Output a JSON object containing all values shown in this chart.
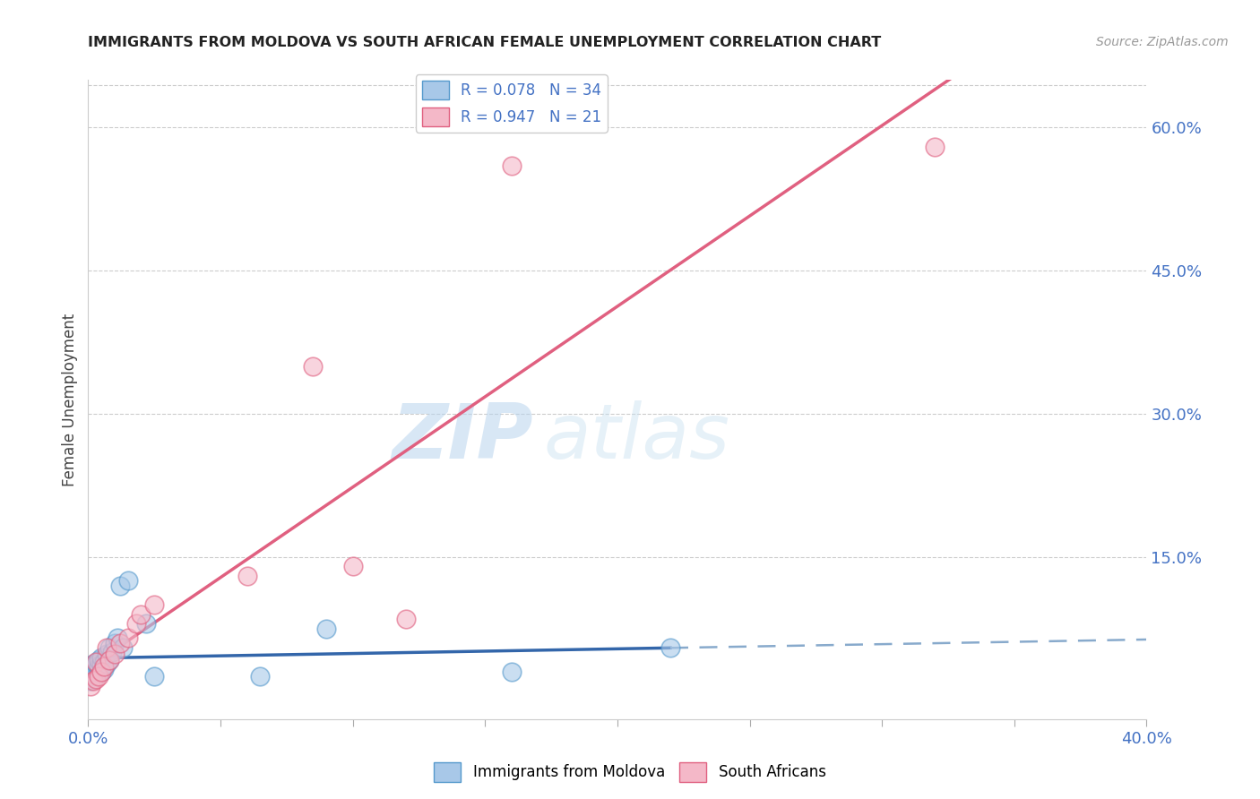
{
  "title": "IMMIGRANTS FROM MOLDOVA VS SOUTH AFRICAN FEMALE UNEMPLOYMENT CORRELATION CHART",
  "source": "Source: ZipAtlas.com",
  "ylabel": "Female Unemployment",
  "watermark_zip": "ZIP",
  "watermark_atlas": "atlas",
  "xlim": [
    0.0,
    0.4
  ],
  "ylim": [
    -0.02,
    0.65
  ],
  "xticks": [
    0.0,
    0.05,
    0.1,
    0.15,
    0.2,
    0.25,
    0.3,
    0.35,
    0.4
  ],
  "xtick_labels": [
    "0.0%",
    "",
    "",
    "",
    "",
    "",
    "",
    "",
    "40.0%"
  ],
  "yticks_right": [
    0.15,
    0.3,
    0.45,
    0.6
  ],
  "ytick_labels_right": [
    "15.0%",
    "30.0%",
    "45.0%",
    "60.0%"
  ],
  "legend_r1": "R = 0.078",
  "legend_n1": "N = 34",
  "legend_r2": "R = 0.947",
  "legend_n2": "N = 21",
  "blue_scatter_color": "#a8c8e8",
  "blue_edge_color": "#5599cc",
  "pink_scatter_color": "#f4b8c8",
  "pink_edge_color": "#e06080",
  "blue_line_solid_color": "#3366aa",
  "blue_line_dash_color": "#88aacc",
  "pink_line_color": "#e06080",
  "axis_label_color": "#4472c4",
  "grid_color": "#cccccc",
  "moldova_x": [
    0.001,
    0.001,
    0.001,
    0.002,
    0.002,
    0.002,
    0.002,
    0.003,
    0.003,
    0.003,
    0.004,
    0.004,
    0.004,
    0.005,
    0.005,
    0.005,
    0.006,
    0.006,
    0.007,
    0.007,
    0.008,
    0.008,
    0.009,
    0.01,
    0.011,
    0.012,
    0.013,
    0.015,
    0.022,
    0.025,
    0.065,
    0.09,
    0.16,
    0.22
  ],
  "moldova_y": [
    0.02,
    0.025,
    0.03,
    0.022,
    0.028,
    0.032,
    0.038,
    0.025,
    0.03,
    0.038,
    0.03,
    0.035,
    0.042,
    0.03,
    0.038,
    0.045,
    0.032,
    0.04,
    0.038,
    0.048,
    0.042,
    0.055,
    0.05,
    0.06,
    0.065,
    0.12,
    0.055,
    0.125,
    0.08,
    0.025,
    0.025,
    0.075,
    0.03,
    0.055
  ],
  "southafrica_x": [
    0.001,
    0.002,
    0.003,
    0.003,
    0.004,
    0.005,
    0.006,
    0.007,
    0.008,
    0.01,
    0.012,
    0.015,
    0.018,
    0.02,
    0.025,
    0.06,
    0.085,
    0.1,
    0.12,
    0.16,
    0.32
  ],
  "southafrica_y": [
    0.015,
    0.02,
    0.022,
    0.04,
    0.025,
    0.03,
    0.035,
    0.055,
    0.042,
    0.048,
    0.06,
    0.065,
    0.08,
    0.09,
    0.1,
    0.13,
    0.35,
    0.14,
    0.085,
    0.56,
    0.58
  ],
  "blue_trendline_x": [
    0.0,
    0.22
  ],
  "blue_trendline_y_start": 0.02,
  "blue_trendline_slope": 0.08,
  "pink_trendline_x0": 0.0,
  "pink_trendline_y0": -0.015,
  "pink_trendline_x1": 0.4,
  "pink_trendline_y1": 0.635
}
